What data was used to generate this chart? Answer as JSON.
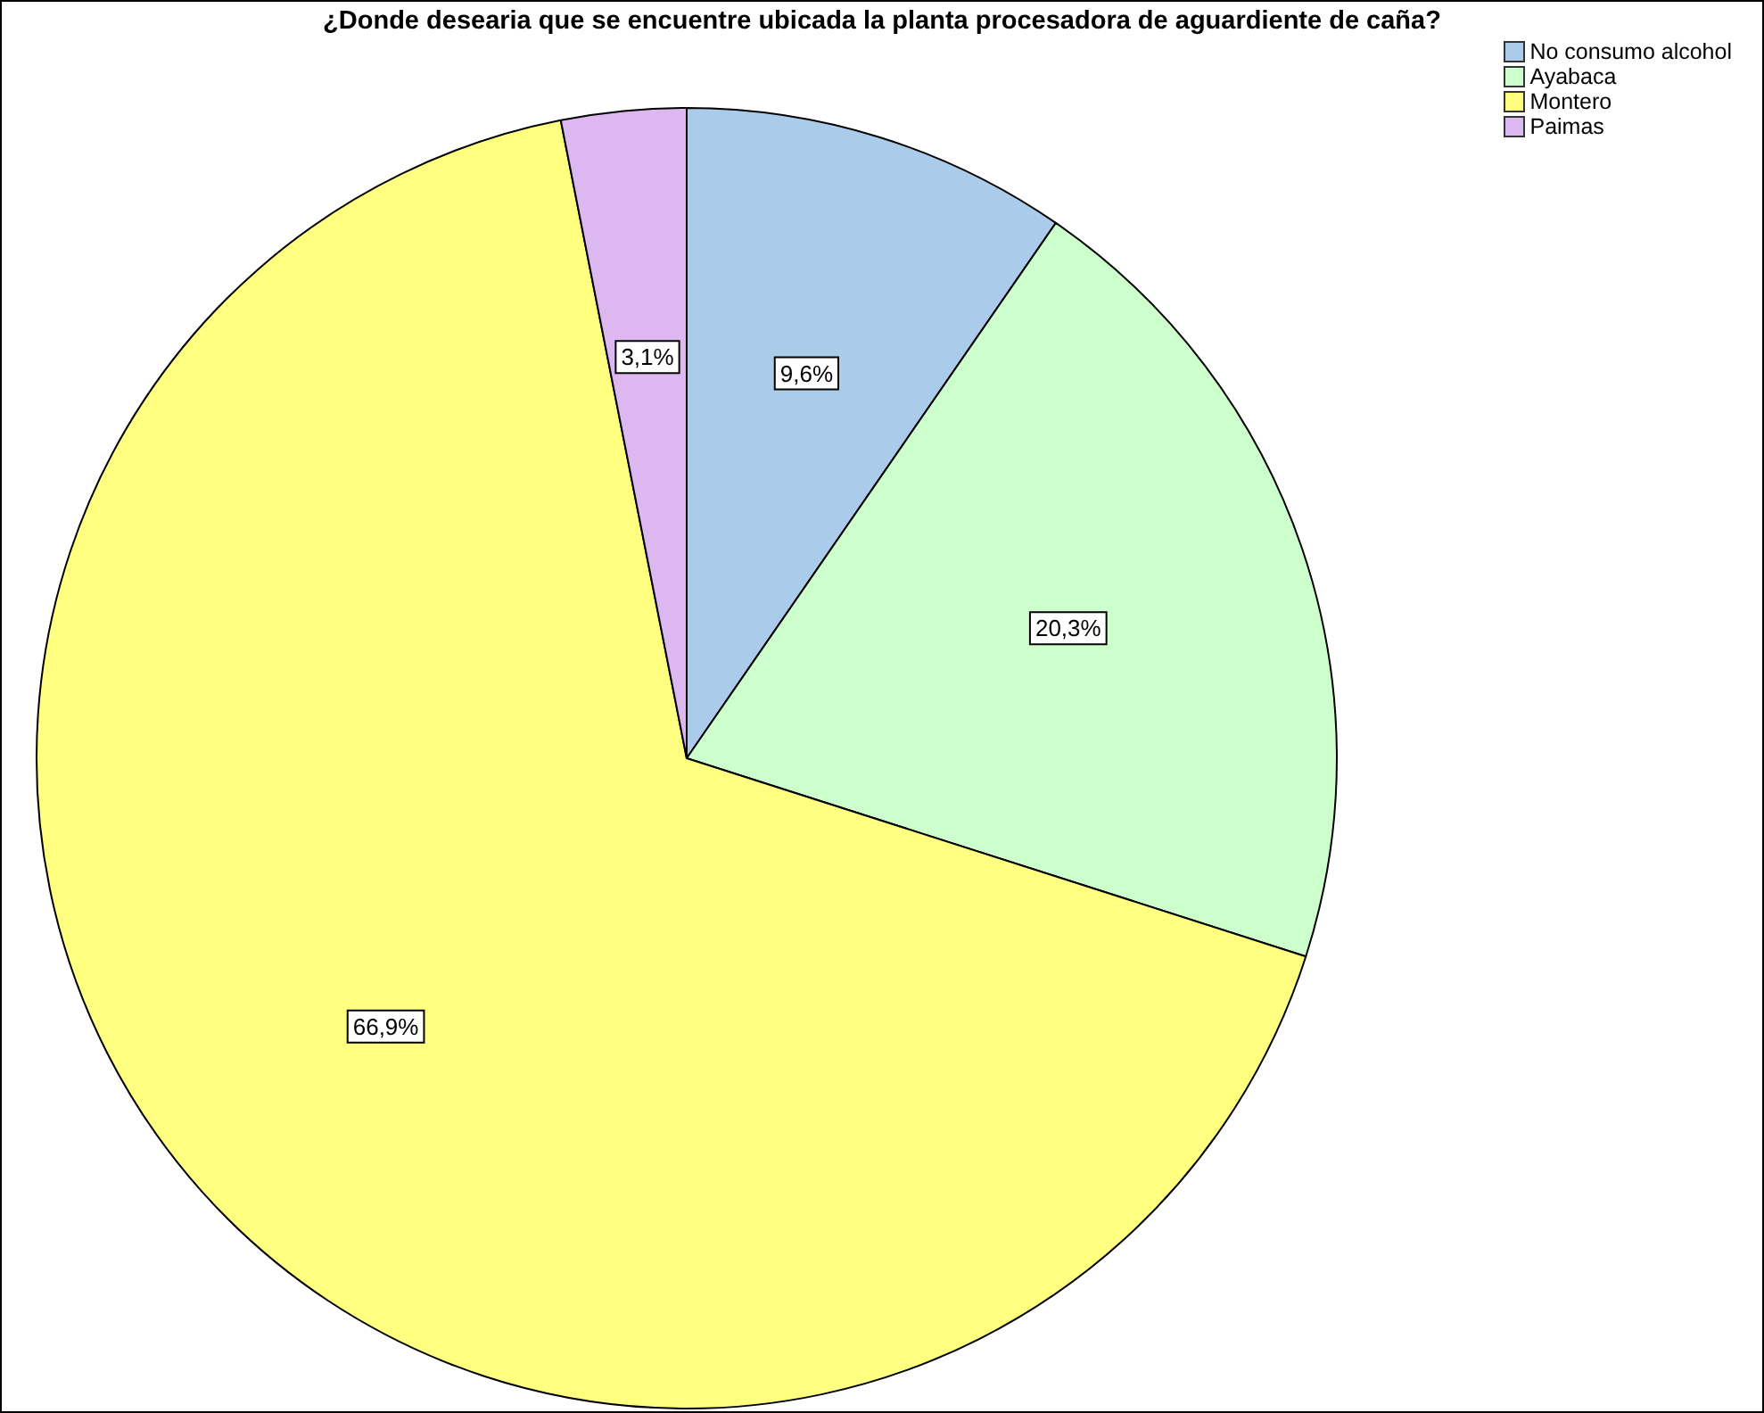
{
  "chart_data": {
    "type": "pie",
    "title": "¿Donde desearia que se encuentre ubicada la planta procesadora de aguardiente de caña?",
    "categories": [
      "No consumo alcohol",
      "Ayabaca",
      "Montero",
      "Paimas"
    ],
    "values": [
      9.6,
      20.3,
      66.9,
      3.1
    ],
    "colors": [
      "#abcbeb",
      "#ccffcc",
      "#ffff80",
      "#dcb7f0"
    ],
    "value_labels": [
      "9,6%",
      "20,3%",
      "66,9%",
      "3,1%"
    ],
    "legend": "top right"
  }
}
